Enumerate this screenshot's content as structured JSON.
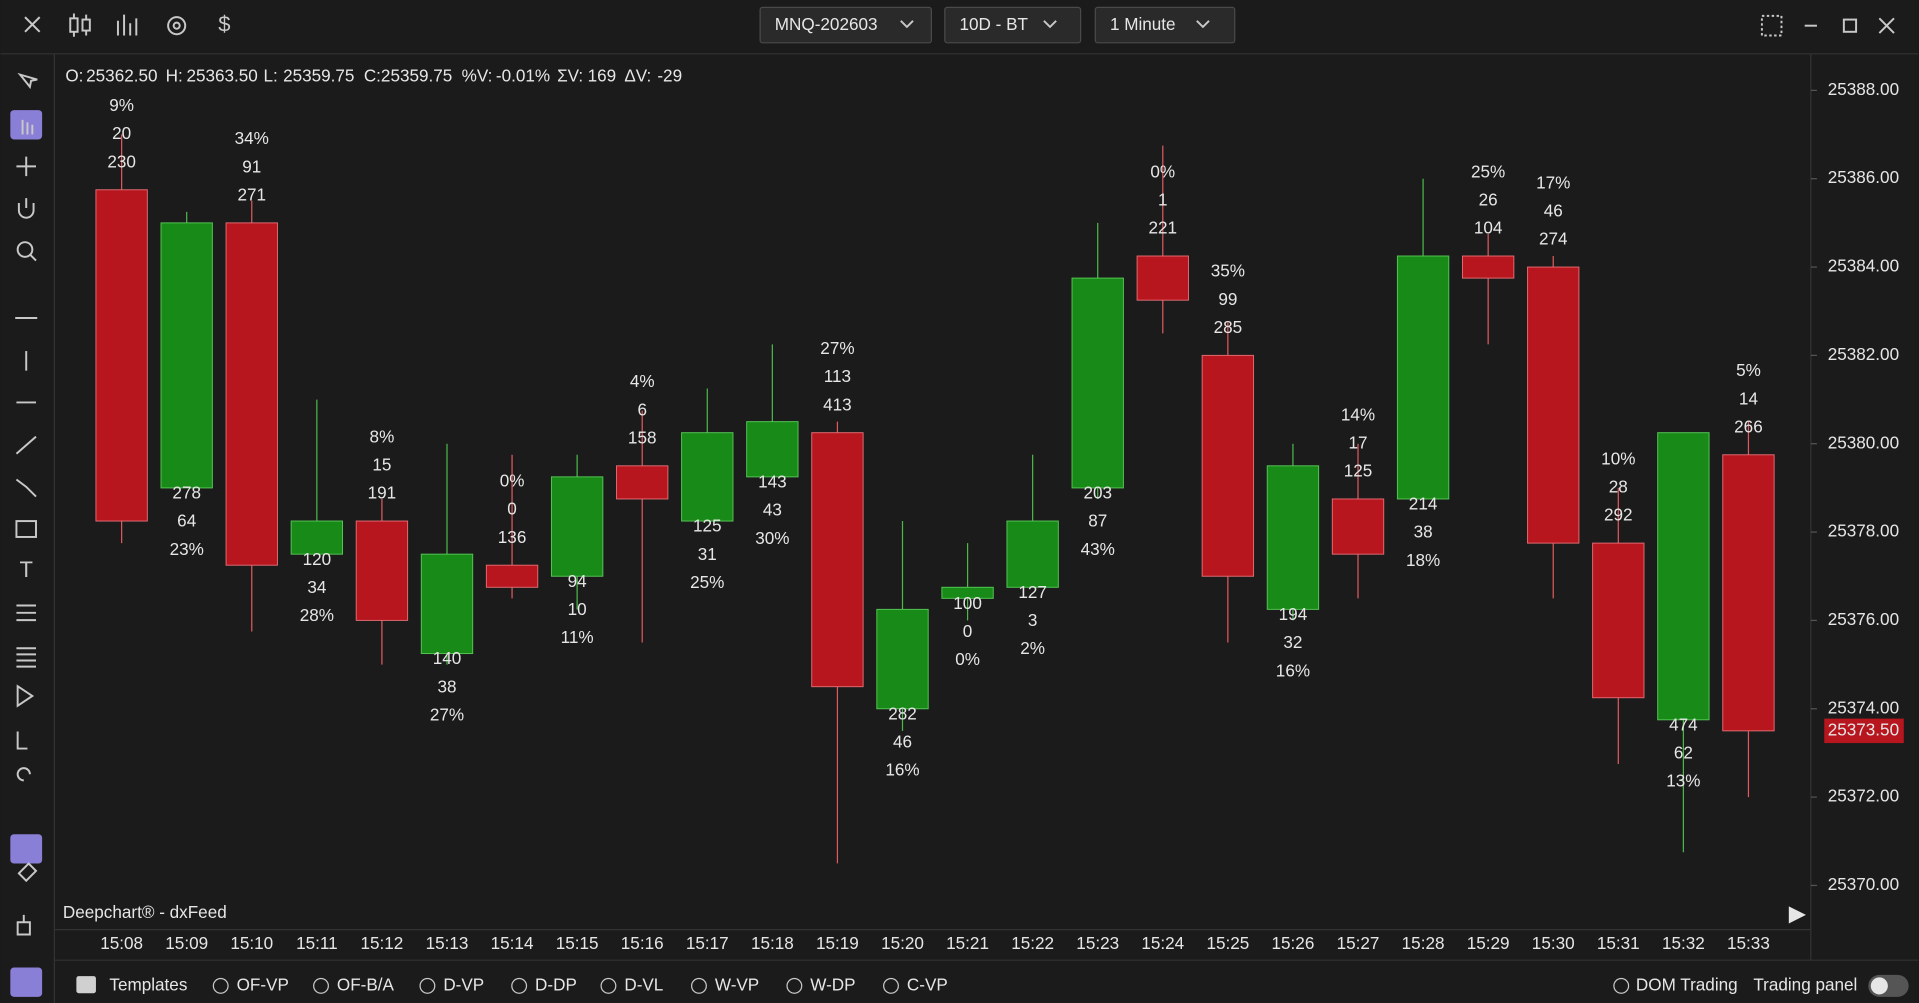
{
  "toolbar": {
    "symbol": "MNQ-202603",
    "template": "10D - BT",
    "interval": "1 Minute"
  },
  "ohlc_header": [
    {
      "label": "O:",
      "value": "25362.50"
    },
    {
      "label": "H:",
      "value": "25363.50"
    },
    {
      "label": "L:",
      "value": "25359.75"
    },
    {
      "label": "C:",
      "value": "25359.75"
    },
    {
      "label": "%V:",
      "value": "-0.01%"
    },
    {
      "label": "ΣV:",
      "value": "169"
    },
    {
      "label": "ΔV:",
      "value": "-29"
    }
  ],
  "watermark": "Deepchart® - dxFeed",
  "chart_data": {
    "type": "candlestick",
    "categories": [
      "15:08",
      "15:09",
      "15:10",
      "15:11",
      "15:12",
      "15:13",
      "15:14",
      "15:15",
      "15:16",
      "15:17",
      "15:18",
      "15:19",
      "15:20",
      "15:21",
      "15:22",
      "15:23",
      "15:24",
      "15:25",
      "15:26",
      "15:27",
      "15:28",
      "15:29",
      "15:30",
      "15:31",
      "15:32",
      "15:33"
    ],
    "open": [
      25385.75,
      25379.0,
      25385.0,
      25377.5,
      25378.25,
      25375.25,
      25377.25,
      25377.0,
      25379.5,
      25378.25,
      25379.25,
      25380.25,
      25374.0,
      25376.5,
      25376.75,
      25379.0,
      25384.25,
      25382.0,
      25376.25,
      25378.75,
      25378.75,
      25384.25,
      25384.0,
      25377.75,
      25373.75,
      25379.75
    ],
    "high": [
      25387.0,
      25385.25,
      25385.5,
      25381.0,
      25378.75,
      25380.0,
      25379.75,
      25379.75,
      25380.75,
      25381.25,
      25382.25,
      25380.5,
      25378.25,
      25377.75,
      25379.75,
      25385.0,
      25386.75,
      25382.75,
      25380.0,
      25380.0,
      25386.0,
      25384.75,
      25384.25,
      25379.0,
      25380.25,
      25380.5
    ],
    "low": [
      25377.75,
      25379.0,
      25375.75,
      25377.5,
      25375.0,
      25375.0,
      25376.5,
      25376.25,
      25375.5,
      25378.25,
      25379.25,
      25370.5,
      25373.5,
      25376.0,
      25376.75,
      25378.75,
      25382.5,
      25375.5,
      25376.0,
      25376.5,
      25378.75,
      25382.25,
      25376.5,
      25372.75,
      25370.75,
      25372.0
    ],
    "close": [
      25378.25,
      25385.0,
      25377.25,
      25378.25,
      25376.0,
      25377.5,
      25376.75,
      25379.25,
      25378.75,
      25380.25,
      25380.5,
      25374.5,
      25376.25,
      25376.75,
      25378.25,
      25383.75,
      25383.25,
      25377.0,
      25379.5,
      25377.5,
      25384.25,
      25383.75,
      25377.75,
      25374.25,
      25380.25,
      25373.5
    ],
    "volume": [
      230,
      278,
      271,
      120,
      191,
      140,
      136,
      94,
      158,
      125,
      143,
      413,
      282,
      100,
      127,
      203,
      221,
      285,
      194,
      125,
      214,
      104,
      274,
      292,
      474,
      266
    ],
    "delta": [
      20,
      64,
      91,
      34,
      15,
      38,
      0,
      10,
      6,
      31,
      43,
      113,
      46,
      0,
      3,
      87,
      1,
      99,
      32,
      17,
      38,
      26,
      46,
      28,
      62,
      14
    ],
    "delta_pct": [
      "9%",
      "23%",
      "34%",
      "28%",
      "8%",
      "27%",
      "0%",
      "11%",
      "4%",
      "25%",
      "30%",
      "27%",
      "16%",
      "0%",
      "2%",
      "43%",
      "0%",
      "35%",
      "16%",
      "14%",
      "18%",
      "25%",
      "17%",
      "10%",
      "13%",
      "5%"
    ],
    "delta_colors": [
      "#f0666a",
      "#3cc43c",
      "#f0666a",
      "#3cc43c",
      "#f0666a",
      "#3cc43c",
      "#3cc43c",
      "#f0666a",
      "#f0666a",
      "#3cc43c",
      "#3cc43c",
      "#f0666a",
      "#3cc43c",
      "#3cc43c",
      "#f0666a",
      "#3cc43c",
      "#f0666a",
      "#f0666a",
      "#3cc43c",
      "#3cc43c",
      "#3cc43c",
      "#f0666a",
      "#f0666a",
      "#f0666a",
      "#3cc43c",
      "#f0666a"
    ],
    "up_color": "#178a17",
    "down_color": "#b8161f",
    "ylim": [
      25369.0,
      25388.8
    ],
    "yticks": [
      {
        "value": 25370,
        "label": "25370.00"
      },
      {
        "value": 25372,
        "label": "25372.00"
      },
      {
        "value": 25374,
        "label": "25374.00"
      },
      {
        "value": 25376,
        "label": "25376.00"
      },
      {
        "value": 25378,
        "label": "25378.00"
      },
      {
        "value": 25380,
        "label": "25380.00"
      },
      {
        "value": 25382,
        "label": "25382.00"
      },
      {
        "value": 25384,
        "label": "25384.00"
      },
      {
        "value": 25386,
        "label": "25386.00"
      },
      {
        "value": 25388,
        "label": "25388.00"
      }
    ],
    "last_price": {
      "value": 25373.5,
      "label": "25373.50"
    }
  },
  "bottom_bar": {
    "templates": "Templates",
    "options": [
      "OF-VP",
      "OF-B/A",
      "D-VP",
      "D-DP",
      "D-VL",
      "W-VP",
      "W-DP",
      "C-VP"
    ],
    "dom_trading": "DOM Trading",
    "trading_panel": "Trading panel"
  }
}
